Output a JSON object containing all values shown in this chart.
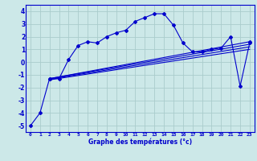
{
  "bg_color": "#cce8e8",
  "grid_color": "#aacccc",
  "line_color": "#0000cc",
  "xlabel": "Graphe des températures (°c)",
  "xlim": [
    -0.5,
    23.5
  ],
  "ylim": [
    -5.5,
    4.5
  ],
  "yticks": [
    -5,
    -4,
    -3,
    -2,
    -1,
    0,
    1,
    2,
    3,
    4
  ],
  "xticks": [
    0,
    1,
    2,
    3,
    4,
    5,
    6,
    7,
    8,
    9,
    10,
    11,
    12,
    13,
    14,
    15,
    16,
    17,
    18,
    19,
    20,
    21,
    22,
    23
  ],
  "line1_x": [
    0,
    1,
    2,
    3,
    4,
    5,
    6,
    7,
    8,
    9,
    10,
    11,
    12,
    13,
    14,
    15,
    16,
    17,
    18,
    19,
    20,
    21,
    22,
    23
  ],
  "line1_y": [
    -5.0,
    -4.0,
    -1.3,
    -1.3,
    0.2,
    1.3,
    1.6,
    1.5,
    2.0,
    2.3,
    2.5,
    3.2,
    3.5,
    3.8,
    3.8,
    2.9,
    1.5,
    0.8,
    0.8,
    1.0,
    1.1,
    2.0,
    -1.9,
    1.5
  ],
  "line2_x": [
    2,
    23
  ],
  "line2_y": [
    -1.3,
    1.6
  ],
  "line3_x": [
    2,
    23
  ],
  "line3_y": [
    -1.3,
    1.4
  ],
  "line4_x": [
    2,
    23
  ],
  "line4_y": [
    -1.35,
    1.2
  ],
  "line5_x": [
    2,
    23
  ],
  "line5_y": [
    -1.4,
    1.0
  ]
}
